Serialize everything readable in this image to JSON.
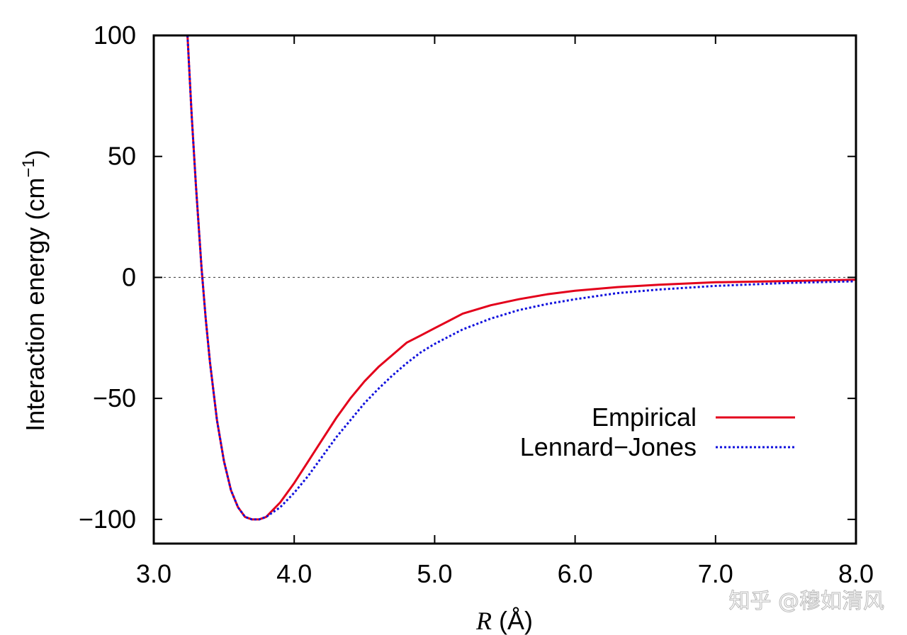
{
  "chart_data": {
    "type": "line",
    "xlabel_var": "R",
    "xlabel_unit": " (Å)",
    "ylabel_main": "Interaction energy (cm",
    "ylabel_sup": "−1",
    "ylabel_close": ")",
    "xlim": [
      3.0,
      8.0
    ],
    "ylim": [
      -110,
      100
    ],
    "xticks": [
      3.0,
      4.0,
      5.0,
      6.0,
      7.0,
      8.0
    ],
    "xtick_labels": [
      "3.0",
      "4.0",
      "5.0",
      "6.0",
      "7.0",
      "8.0"
    ],
    "yticks": [
      100,
      50,
      0,
      -50,
      -100
    ],
    "ytick_labels": [
      "100",
      "50",
      "0",
      "−50",
      "−100"
    ],
    "zero_line": true,
    "legend_position": "lower-right",
    "series": [
      {
        "name": "Empirical",
        "color": "#e3001b",
        "dash": "solid",
        "x": [
          3.24,
          3.27,
          3.3,
          3.34,
          3.37,
          3.4,
          3.45,
          3.5,
          3.55,
          3.6,
          3.65,
          3.7,
          3.75,
          3.8,
          3.85,
          3.9,
          4.0,
          4.1,
          4.2,
          4.3,
          4.4,
          4.5,
          4.6,
          4.7,
          4.8,
          4.9,
          5.0,
          5.2,
          5.4,
          5.6,
          5.8,
          6.0,
          6.3,
          6.6,
          7.0,
          7.5,
          8.0
        ],
        "y": [
          100,
          67,
          38,
          4,
          -17,
          -35,
          -59,
          -76,
          -88,
          -95,
          -99,
          -100,
          -100,
          -99,
          -96,
          -93,
          -85,
          -76,
          -67,
          -58,
          -50,
          -43,
          -37,
          -32,
          -27,
          -24,
          -21,
          -15,
          -11.5,
          -9,
          -7,
          -5.5,
          -4,
          -3,
          -2,
          -1.5,
          -1
        ]
      },
      {
        "name": "Lennard−Jones",
        "color": "#1010dd",
        "dash": "dotted",
        "x": [
          3.24,
          3.27,
          3.3,
          3.34,
          3.37,
          3.4,
          3.45,
          3.5,
          3.55,
          3.6,
          3.65,
          3.7,
          3.75,
          3.8,
          3.85,
          3.9,
          4.0,
          4.1,
          4.2,
          4.3,
          4.4,
          4.5,
          4.6,
          4.7,
          4.8,
          4.9,
          5.0,
          5.2,
          5.4,
          5.6,
          5.8,
          6.0,
          6.3,
          6.6,
          7.0,
          7.5,
          8.0
        ],
        "y": [
          100,
          67,
          38,
          4,
          -17,
          -35,
          -59,
          -76,
          -88,
          -95,
          -99,
          -100,
          -100,
          -99,
          -97,
          -95,
          -89,
          -82,
          -74,
          -66,
          -59,
          -52,
          -46,
          -40.5,
          -35.5,
          -31,
          -27.5,
          -21.5,
          -17,
          -13.5,
          -11,
          -9,
          -6.5,
          -5,
          -3.5,
          -2.3,
          -1.6
        ]
      }
    ]
  },
  "watermark": "知乎 @穆如清风"
}
